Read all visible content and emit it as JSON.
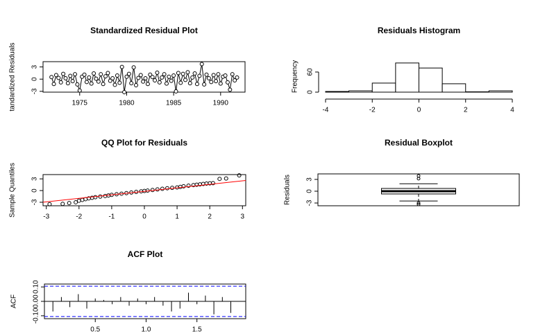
{
  "chart_data": [
    {
      "type": "line",
      "title": "Standardized Residual Plot",
      "ylabel": "tandardized Residuals",
      "x": [
        1972,
        1972.25,
        1972.5,
        1972.75,
        1973,
        1973.25,
        1973.5,
        1973.75,
        1974,
        1974.25,
        1974.5,
        1974.75,
        1975,
        1975.25,
        1975.5,
        1975.75,
        1976,
        1976.25,
        1976.5,
        1976.75,
        1977,
        1977.25,
        1977.5,
        1977.75,
        1978,
        1978.25,
        1978.5,
        1978.75,
        1979,
        1979.25,
        1979.5,
        1979.75,
        1980,
        1980.25,
        1980.5,
        1980.75,
        1981,
        1981.25,
        1981.5,
        1981.75,
        1982,
        1982.25,
        1982.5,
        1982.75,
        1983,
        1983.25,
        1983.5,
        1983.75,
        1984,
        1984.25,
        1984.5,
        1984.75,
        1985,
        1985.25,
        1985.5,
        1985.75,
        1986,
        1986.25,
        1986.5,
        1986.75,
        1987,
        1987.25,
        1987.5,
        1987.75,
        1988,
        1988.25,
        1988.5,
        1988.75,
        1989,
        1989.25,
        1989.5,
        1989.75,
        1990,
        1990.25,
        1990.5,
        1990.75,
        1991,
        1991.25,
        1991.5,
        1991.75
      ],
      "values": [
        0.5,
        -1.2,
        1.0,
        0.3,
        -0.8,
        1.3,
        0.2,
        -1.0,
        0.8,
        -0.5,
        1.2,
        -1.3,
        -2.8,
        0.6,
        1.1,
        -0.7,
        0.4,
        -1.1,
        1.4,
        0.1,
        -0.6,
        1.2,
        -1.2,
        0.7,
        1.5,
        -0.4,
        0.2,
        -1.4,
        0.9,
        -0.9,
        3.0,
        -3.2,
        0.6,
        1.3,
        -1.0,
        2.9,
        -1.5,
        0.3,
        1.0,
        -0.6,
        0.2,
        -1.2,
        1.1,
        0.5,
        -0.3,
        1.6,
        -0.8,
        0.4,
        1.2,
        -1.1,
        0.6,
        -0.4,
        0.9,
        -3.0,
        1.5,
        -0.9,
        1.3,
        -0.2,
        1.7,
        -1.0,
        0.4,
        1.4,
        -1.2,
        0.8,
        3.7,
        -1.3,
        1.1,
        0.2,
        -0.7,
        1.0,
        -0.5,
        1.2,
        -1.1,
        0.6,
        0.9,
        -0.8,
        -2.6,
        1.2,
        -0.3,
        0.4
      ],
      "color": "#000000",
      "xlim": [
        1971.1,
        1992.6
      ],
      "ylim": [
        -3.2,
        4.3
      ],
      "xticks": [
        1975,
        1980,
        1985,
        1990
      ],
      "yticks": [
        -3,
        0,
        3
      ]
    },
    {
      "type": "histogram",
      "title": "Residuals Histogram",
      "ylabel": "Frequency",
      "bins": [
        -4,
        -3,
        -2,
        -1,
        0,
        1,
        2,
        3,
        4
      ],
      "values": [
        2,
        4,
        27,
        87,
        72,
        25,
        1,
        4
      ],
      "color": "#ffffff",
      "xlim": [
        -4,
        4
      ],
      "ylim": [
        0,
        93
      ],
      "xticks": [
        -4,
        -2,
        0,
        2,
        4
      ],
      "yticks": [
        0,
        60
      ]
    },
    {
      "type": "scatter",
      "title": "QQ Plot for Residuals",
      "ylabel": "Sample Quantiles",
      "x": [
        -2.9,
        -2.5,
        -2.3,
        -2.1,
        -2.0,
        -1.9,
        -1.8,
        -1.7,
        -1.6,
        -1.5,
        -1.35,
        -1.2,
        -1.1,
        -1.0,
        -0.85,
        -0.7,
        -0.55,
        -0.4,
        -0.25,
        -0.1,
        0.0,
        0.1,
        0.25,
        0.4,
        0.55,
        0.7,
        0.85,
        1.0,
        1.1,
        1.2,
        1.35,
        1.5,
        1.6,
        1.7,
        1.8,
        1.9,
        2.0,
        2.1,
        2.3,
        2.5,
        2.9
      ],
      "values": [
        -3.5,
        -3.4,
        -3.2,
        -3.0,
        -2.6,
        -2.4,
        -2.2,
        -2.0,
        -1.85,
        -1.7,
        -1.55,
        -1.4,
        -1.25,
        -1.1,
        -0.95,
        -0.8,
        -0.65,
        -0.5,
        -0.35,
        -0.2,
        -0.1,
        0.0,
        0.15,
        0.3,
        0.45,
        0.6,
        0.7,
        0.8,
        0.95,
        1.1,
        1.25,
        1.4,
        1.5,
        1.6,
        1.7,
        1.8,
        1.85,
        1.9,
        3.0,
        3.1,
        3.9
      ],
      "color": "#000000",
      "line": {
        "intercept": -0.2,
        "slope": 0.9,
        "color": "#ff0000"
      },
      "xlim": [
        -3.1,
        3.1
      ],
      "ylim": [
        -3.9,
        4.1
      ],
      "xticks": [
        -3,
        -2,
        -1,
        0,
        1,
        2,
        3
      ],
      "yticks": [
        -3,
        0,
        3
      ]
    },
    {
      "type": "box",
      "title": "Residual Boxplot",
      "ylabel": "Residuals",
      "q1": -0.7,
      "median": 0,
      "q3": 0.7,
      "whisker_low": -2.5,
      "whisker_high": 1.9,
      "outliers": [
        3.9,
        3.2,
        -3.0,
        -3.35
      ],
      "ylim": [
        -3.7,
        4.4
      ],
      "yticks": [
        -3,
        0,
        3
      ]
    },
    {
      "type": "acf",
      "title": "ACF Plot",
      "ylabel": "ACF",
      "x": [
        0.0833,
        0.1667,
        0.25,
        0.3333,
        0.4167,
        0.5,
        0.5833,
        0.6667,
        0.75,
        0.8333,
        0.9167,
        1.0,
        1.0833,
        1.1667,
        1.25,
        1.3333,
        1.4167,
        1.5,
        1.5833,
        1.6667,
        1.75,
        1.8333,
        1.9167
      ],
      "values": [
        -0.07,
        0.03,
        -0.04,
        0.05,
        -0.05,
        0.02,
        0.01,
        -0.02,
        0.03,
        -0.03,
        0.02,
        -0.02,
        0.03,
        -0.03,
        -0.07,
        -0.05,
        0.06,
        -0.02,
        0.04,
        -0.09,
        0.03,
        -0.08,
        0.0
      ],
      "conf": 0.105,
      "conf_color": "#0000ff",
      "color": "#000000",
      "xlim": [
        0,
        1.98
      ],
      "ylim": [
        -0.12,
        0.12
      ],
      "xticks": [
        0.5,
        {
          "value": 1.0,
          "label": "1.0"
        },
        1.5
      ],
      "yticks": [
        {
          "value": -0.1,
          "label": "-0.10"
        },
        {
          "value": 0,
          "label": "0.00"
        },
        {
          "value": 0.1,
          "label": "0.10"
        }
      ]
    }
  ]
}
